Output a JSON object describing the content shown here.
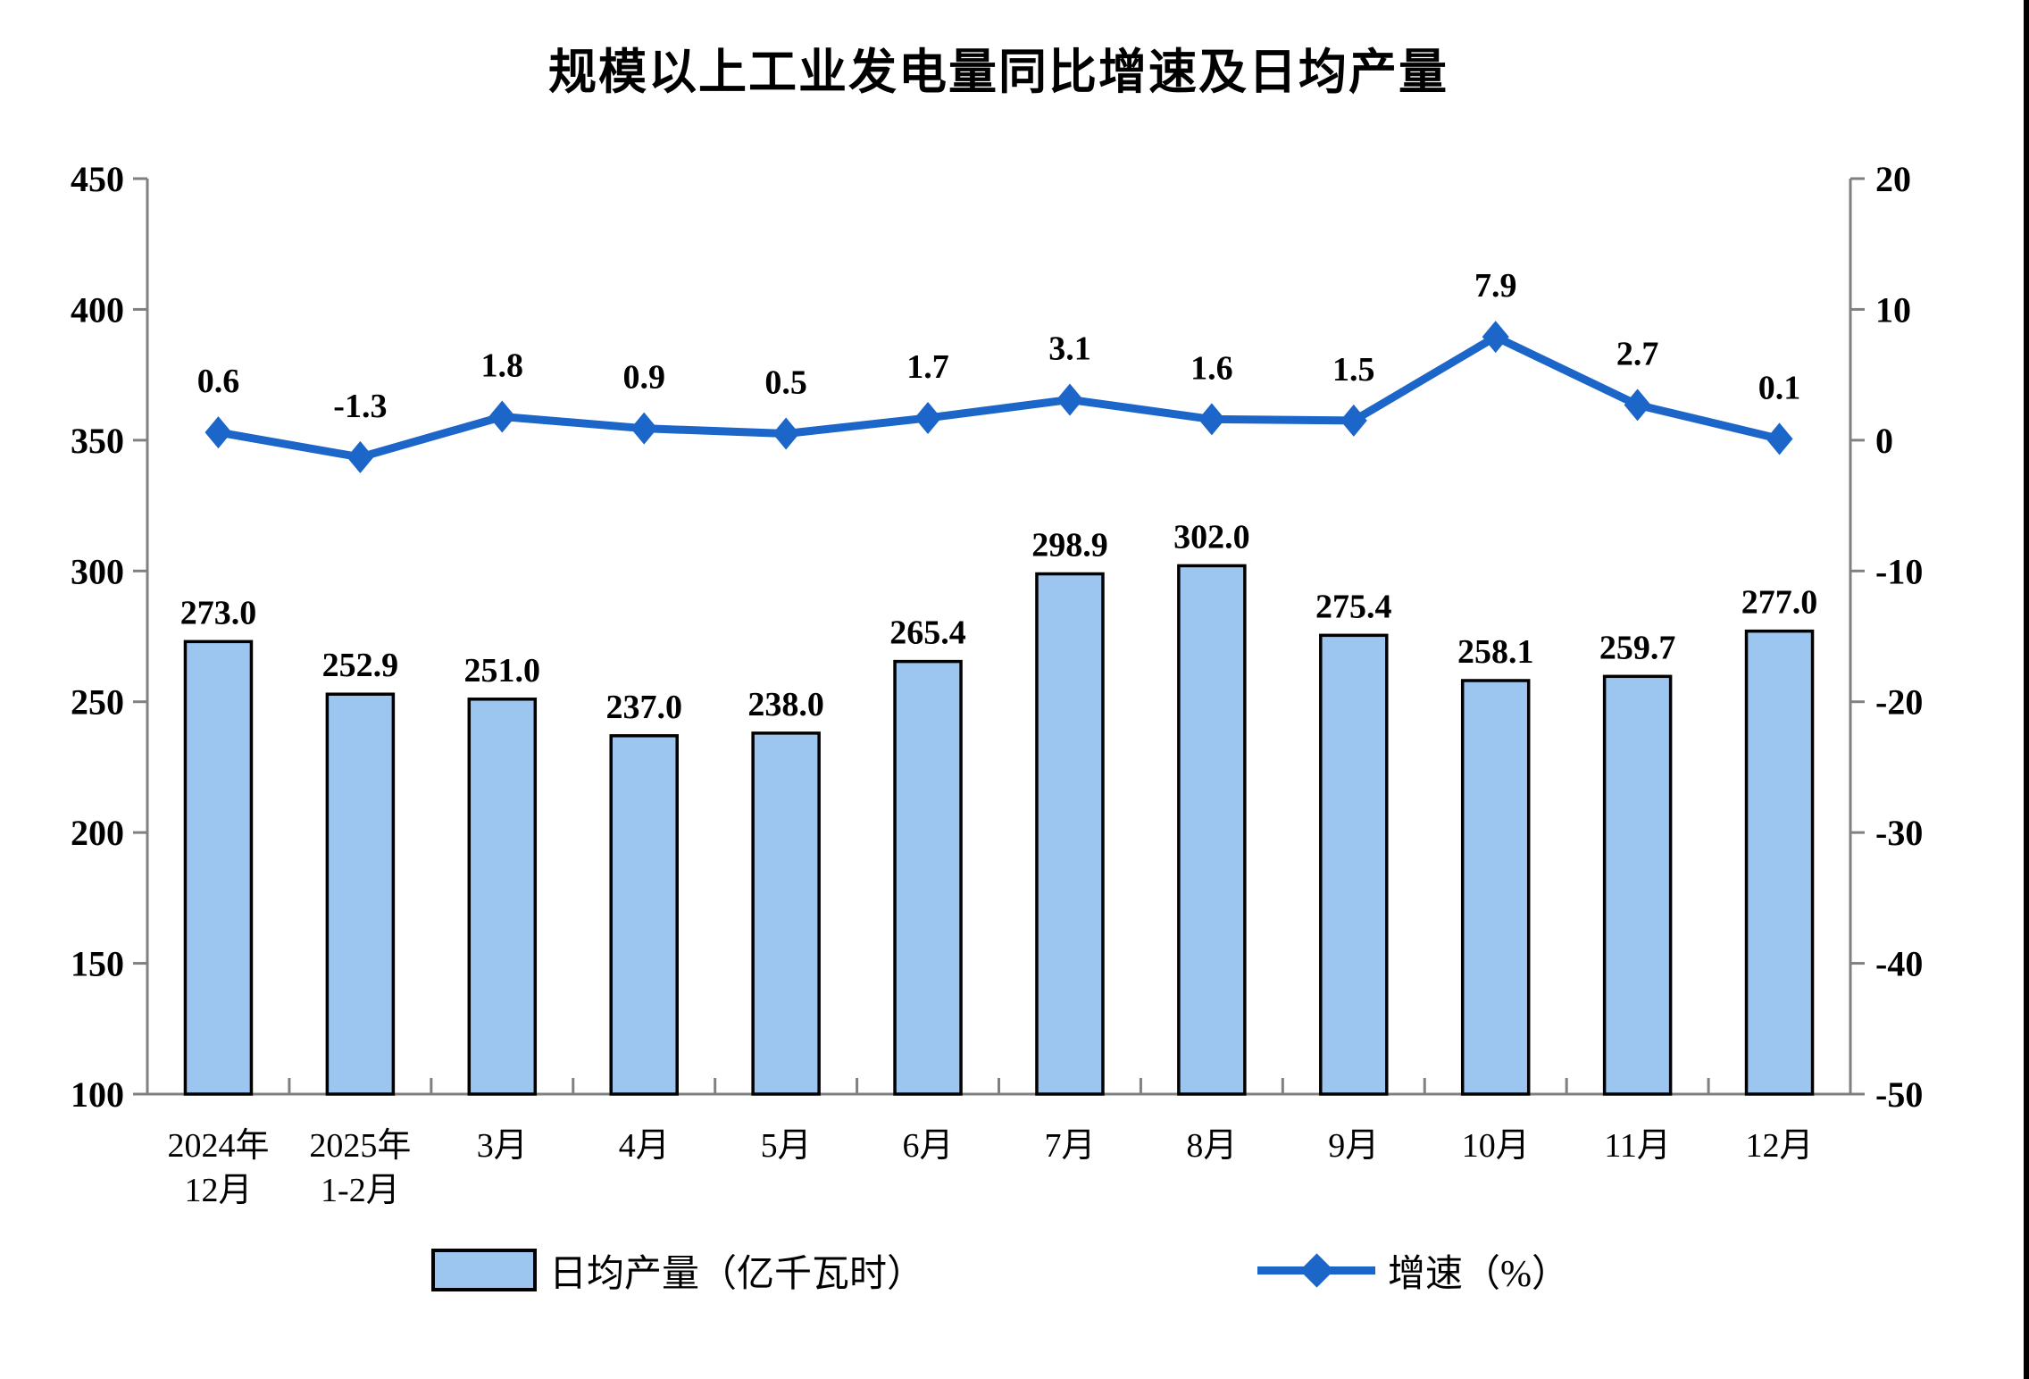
{
  "title": "规模以上工业发电量同比增速及日均产量",
  "colors": {
    "bar_fill": "#9CC6EF",
    "bar_border": "#000000",
    "line": "#1B66C8",
    "axis": "#808080",
    "text": "#000000"
  },
  "legend": [
    {
      "label": "日均产量（亿千瓦时）",
      "type": "bar"
    },
    {
      "label": "增速（%）",
      "type": "line"
    }
  ],
  "chart_data": {
    "type": "combo",
    "categories": [
      "2024年\n12月",
      "2025年\n1-2月",
      "3月",
      "4月",
      "5月",
      "6月",
      "7月",
      "8月",
      "9月",
      "10月",
      "11月",
      "12月"
    ],
    "series": [
      {
        "name": "日均产量（亿千瓦时）",
        "type": "bar",
        "axis": "left",
        "values": [
          "273.0",
          "252.9",
          "251.0",
          "237.0",
          "238.0",
          "265.4",
          "298.9",
          "302.0",
          "275.4",
          "258.1",
          "259.7",
          "277.0"
        ]
      },
      {
        "name": "增速（%）",
        "type": "line",
        "axis": "right",
        "values": [
          "0.6",
          "-1.3",
          "1.8",
          "0.9",
          "0.5",
          "1.7",
          "3.1",
          "1.6",
          "1.5",
          "7.9",
          "2.7",
          "0.1"
        ]
      }
    ],
    "left_axis": {
      "min": 100,
      "max": 450,
      "step": 50,
      "ticks": [
        "100",
        "150",
        "200",
        "250",
        "300",
        "350",
        "400",
        "450"
      ]
    },
    "right_axis": {
      "min": -50,
      "max": 20,
      "step": 10,
      "ticks": [
        "-50",
        "-40",
        "-30",
        "-20",
        "-10",
        "0",
        "10",
        "20"
      ]
    },
    "grid": false,
    "legend_position": "bottom"
  }
}
